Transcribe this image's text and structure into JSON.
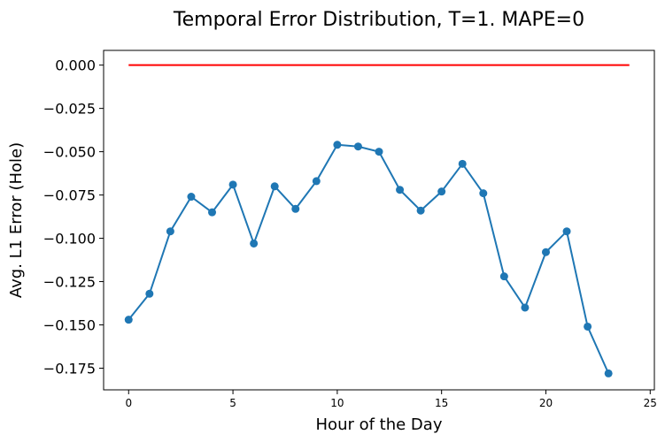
{
  "chart_data": {
    "type": "line",
    "title": "Temporal Error Distribution, T=1. MAPE=0",
    "xlabel": "Hour of the Day",
    "ylabel": "Avg. L1 Error (Hole)",
    "xlim": [
      -1.2,
      25.2
    ],
    "ylim": [
      -0.1875,
      0.0085
    ],
    "grid": false,
    "x_ticks": [
      0,
      5,
      10,
      15,
      20,
      25
    ],
    "y_ticks": [
      0.0,
      -0.025,
      -0.05,
      -0.075,
      -0.1,
      -0.125,
      -0.15,
      -0.175
    ],
    "x_tick_labels": [
      "0",
      "5",
      "10",
      "15",
      "20",
      "25"
    ],
    "y_tick_labels": [
      "0.000",
      "−0.025",
      "−0.050",
      "−0.075",
      "−0.100",
      "−0.125",
      "−0.150",
      "−0.175"
    ],
    "series": [
      {
        "color": "#1f77b4",
        "marker": "circle",
        "x": [
          0,
          1,
          2,
          3,
          4,
          5,
          6,
          7,
          8,
          9,
          10,
          11,
          12,
          13,
          14,
          15,
          16,
          17,
          18,
          19,
          20,
          21,
          22,
          23
        ],
        "values": [
          -0.147,
          -0.132,
          -0.096,
          -0.076,
          -0.085,
          -0.069,
          -0.103,
          -0.07,
          -0.083,
          -0.067,
          -0.046,
          -0.047,
          -0.05,
          -0.072,
          -0.084,
          -0.073,
          -0.057,
          -0.074,
          -0.122,
          -0.14,
          -0.108,
          -0.096,
          -0.151,
          -0.178
        ]
      },
      {
        "color": "#ff0000",
        "marker": "none",
        "x": [
          0,
          24
        ],
        "values": [
          0.0,
          0.0
        ]
      }
    ]
  }
}
